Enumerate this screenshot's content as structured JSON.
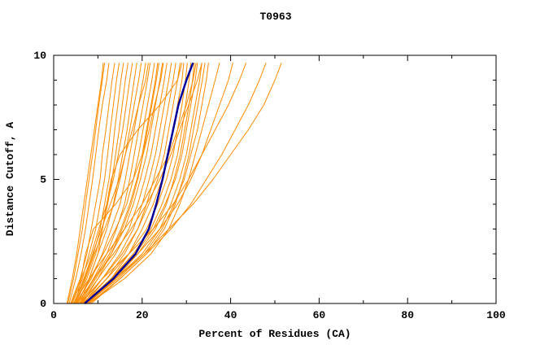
{
  "chart_data": {
    "type": "line",
    "title": "T0963",
    "xlabel": "Percent of Residues (CA)",
    "ylabel": "Distance Cutoff, A",
    "xlim": [
      0,
      100
    ],
    "ylim": [
      0,
      10
    ],
    "x_ticks": [
      0,
      20,
      40,
      60,
      80,
      100
    ],
    "x_minor_ticks": [
      10,
      30,
      50,
      70,
      90
    ],
    "y_ticks": [
      0,
      5,
      10
    ],
    "y_minor_ticks": [
      1,
      2,
      3,
      4,
      6,
      7,
      8,
      9
    ],
    "grid": false,
    "legend": "none",
    "colors": {
      "models": "#ff8c00",
      "highlight": "#000099",
      "axis": "#000000",
      "background": "#ffffff"
    },
    "y_levels": [
      0,
      1,
      2,
      3,
      4,
      5,
      6,
      7,
      8,
      9,
      9.7
    ],
    "model_series": [
      [
        3.2,
        4.5,
        5.5,
        6.5,
        7.2,
        8.0,
        8.8,
        9.5,
        10.2,
        11.0,
        11.5
      ],
      [
        3.5,
        5.0,
        6.2,
        7.2,
        8.0,
        8.8,
        9.5,
        10.2,
        11.0,
        12.0,
        12.5
      ],
      [
        3.8,
        6.0,
        7.5,
        8.5,
        9.5,
        10.5,
        11.0,
        11.8,
        12.5,
        13.2,
        13.8
      ],
      [
        4.2,
        6.5,
        8.0,
        9.5,
        10.5,
        11.5,
        12.2,
        12.8,
        13.5,
        14.2,
        14.8
      ],
      [
        4.5,
        7.0,
        9.0,
        10.5,
        11.5,
        12.5,
        13.2,
        13.8,
        14.5,
        15.2,
        15.8
      ],
      [
        5.0,
        7.5,
        9.5,
        11.0,
        12.2,
        13.2,
        14.0,
        14.8,
        15.5,
        16.2,
        16.8
      ],
      [
        4.0,
        6.2,
        8.5,
        10.2,
        12.0,
        13.5,
        14.6,
        15.6,
        16.4,
        17.2,
        17.8
      ],
      [
        5.5,
        8.0,
        10.0,
        12.0,
        13.5,
        14.6,
        15.6,
        16.6,
        17.4,
        18.2,
        18.8
      ],
      [
        4.8,
        7.2,
        9.2,
        11.5,
        13.6,
        15.0,
        16.2,
        17.2,
        18.2,
        19.2,
        19.8
      ],
      [
        5.0,
        8.5,
        11.0,
        13.0,
        15.0,
        16.2,
        17.2,
        18.2,
        19.2,
        20.2,
        20.8
      ],
      [
        6.0,
        9.0,
        12.0,
        14.2,
        16.0,
        17.2,
        18.2,
        19.2,
        20.2,
        21.2,
        21.8
      ],
      [
        5.2,
        8.2,
        11.2,
        14.0,
        16.5,
        18.0,
        19.2,
        20.2,
        21.2,
        22.2,
        22.8
      ],
      [
        6.5,
        10.0,
        13.0,
        15.5,
        17.5,
        19.0,
        20.2,
        21.2,
        22.2,
        23.2,
        23.8
      ],
      [
        5.8,
        9.5,
        13.0,
        16.0,
        18.0,
        19.6,
        21.0,
        22.0,
        23.0,
        24.0,
        24.6
      ],
      [
        6.0,
        10.0,
        14.0,
        17.0,
        19.0,
        20.6,
        22.0,
        23.0,
        24.0,
        25.0,
        25.6
      ],
      [
        6.8,
        11.0,
        15.0,
        18.0,
        20.0,
        21.6,
        23.0,
        24.0,
        25.0,
        26.0,
        26.6
      ],
      [
        7.0,
        12.0,
        16.0,
        19.0,
        21.0,
        22.6,
        24.0,
        25.0,
        26.0,
        27.0,
        27.6
      ],
      [
        6.2,
        11.0,
        15.5,
        19.0,
        21.5,
        23.5,
        25.0,
        26.0,
        27.0,
        28.0,
        28.6
      ],
      [
        7.5,
        13.0,
        17.0,
        20.0,
        22.5,
        24.5,
        26.0,
        27.0,
        28.0,
        29.0,
        29.4
      ],
      [
        6.5,
        12.0,
        17.0,
        21.0,
        23.5,
        25.5,
        27.0,
        28.0,
        29.0,
        29.8,
        30.2
      ],
      [
        7.0,
        13.0,
        18.0,
        22.0,
        24.5,
        26.5,
        28.0,
        29.0,
        29.8,
        30.6,
        31.0
      ],
      [
        7.8,
        14.0,
        19.0,
        23.0,
        25.5,
        27.2,
        28.6,
        29.6,
        30.6,
        31.4,
        31.8
      ],
      [
        6.8,
        13.0,
        18.5,
        22.5,
        25.2,
        27.5,
        29.0,
        30.0,
        31.0,
        32.0,
        32.5
      ],
      [
        7.2,
        14.0,
        20.0,
        24.0,
        26.5,
        28.5,
        30.0,
        31.0,
        32.0,
        33.0,
        33.5
      ],
      [
        8.0,
        15.0,
        21.0,
        25.0,
        27.5,
        29.2,
        30.6,
        31.6,
        32.6,
        33.6,
        34.2
      ],
      [
        7.5,
        14.5,
        20.5,
        24.5,
        27.2,
        29.5,
        31.0,
        32.5,
        33.5,
        34.5,
        35.0
      ],
      [
        5.5,
        9.0,
        13.5,
        17.5,
        21.0,
        24.0,
        26.5,
        28.5,
        30.5,
        32.5,
        33.5
      ],
      [
        4.5,
        8.0,
        12.0,
        16.0,
        20.0,
        23.0,
        26.0,
        28.0,
        30.0,
        31.5,
        32.2
      ],
      [
        8.0,
        16.0,
        22.0,
        26.0,
        28.5,
        30.5,
        32.0,
        33.5,
        35.0,
        36.5,
        37.5
      ],
      [
        7.0,
        13.0,
        19.0,
        24.0,
        28.0,
        31.0,
        33.5,
        35.5,
        37.5,
        39.5,
        40.5
      ],
      [
        6.0,
        11.0,
        17.0,
        22.5,
        27.0,
        30.5,
        33.5,
        36.5,
        39.5,
        42.0,
        43.5
      ],
      [
        8.5,
        15.0,
        21.0,
        26.5,
        31.0,
        34.5,
        38.0,
        41.0,
        44.0,
        46.5,
        48.0
      ],
      [
        7.5,
        14.0,
        20.5,
        26.0,
        31.5,
        36.0,
        40.0,
        44.0,
        47.5,
        50.0,
        51.5
      ],
      [
        5.0,
        6.2,
        7.2,
        9.0,
        14.0,
        18.0,
        20.0,
        21.0,
        22.0,
        23.0,
        23.5
      ],
      [
        6.0,
        8.0,
        10.0,
        11.0,
        12.0,
        13.0,
        15.0,
        19.0,
        24.0,
        28.0,
        29.0
      ],
      [
        4.6,
        6.8,
        8.8,
        10.8,
        12.8,
        14.8,
        16.2,
        17.8,
        19.2,
        20.8,
        21.4
      ],
      [
        5.4,
        9.2,
        12.6,
        15.2,
        17.2,
        18.8,
        20.2,
        21.6,
        22.8,
        24.2,
        24.8
      ],
      [
        3.0,
        4.2,
        5.2,
        6.0,
        6.8,
        7.6,
        8.4,
        9.2,
        10.0,
        10.8,
        11.2
      ]
    ],
    "highlight_series": [
      7.0,
      13.5,
      18.5,
      21.5,
      23.2,
      24.6,
      25.8,
      27.0,
      28.2,
      30.0,
      31.5
    ]
  }
}
